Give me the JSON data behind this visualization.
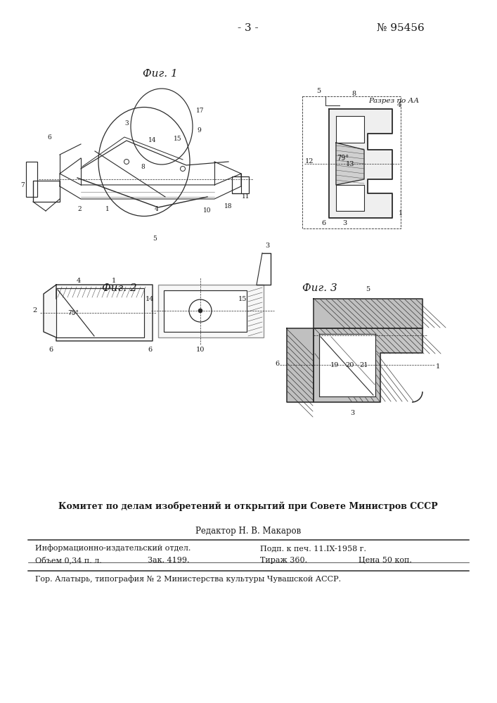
{
  "page_number": "- 3 -",
  "patent_number": "№ 95456",
  "fig1_label": "Фиг. 1",
  "fig2_label": "Фиг. 2",
  "fig3_label": "Фиг. 3",
  "section_label": "Разрез по АА",
  "committee_text": "Комитет по делам изобретений и открытий при Совете Министров СССР",
  "editor_text": "Редактор Н. В. Макаров",
  "info_line1": "Информационно-издательский отдел.",
  "info_line2": "Объем 0,34 п. л.",
  "info_line3": "Зак. 4199.",
  "info_date": "Подп. к печ. 11.IX-1958 г.",
  "info_tirazh": "Тираж 360.",
  "info_price": "Цена 50 коп.",
  "city_text": "Гор. Алатырь, типография № 2 Министерства культуры Чувашской АССР.",
  "bg_color": "#ffffff",
  "text_color": "#1a1a1a",
  "line_color": "#2a2a2a"
}
